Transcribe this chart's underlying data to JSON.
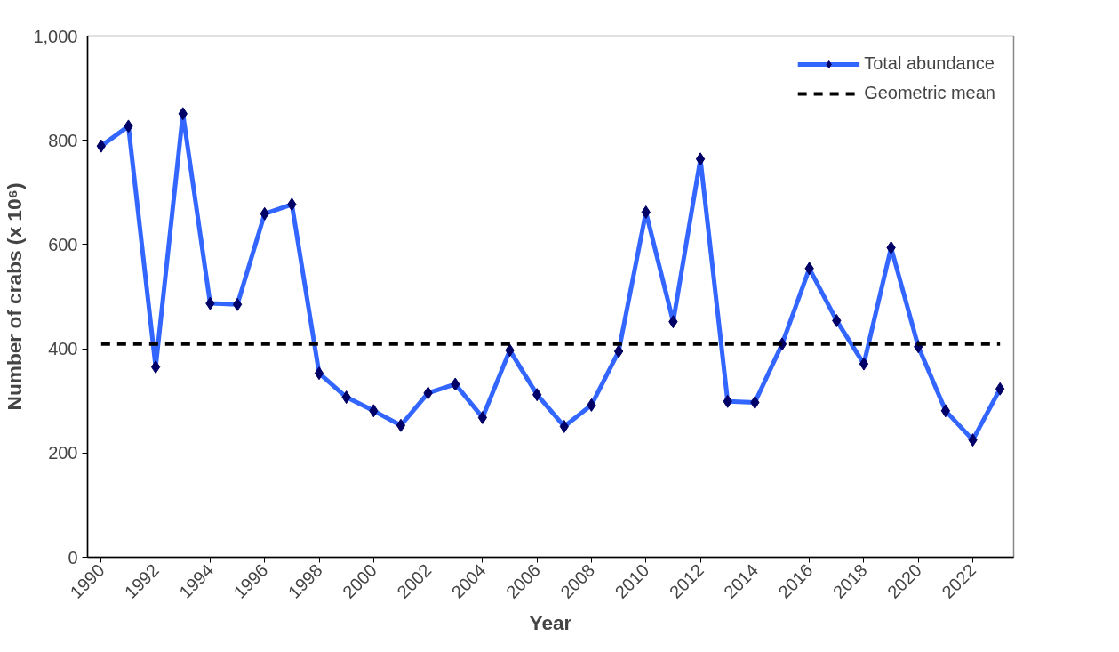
{
  "chart_data": {
    "type": "line",
    "xlabel": "Year",
    "ylabel": "Number of crabs (x 10⁶)",
    "x": [
      1990,
      1991,
      1992,
      1993,
      1994,
      1995,
      1996,
      1997,
      1998,
      1999,
      2000,
      2001,
      2002,
      2003,
      2004,
      2005,
      2006,
      2007,
      2008,
      2009,
      2010,
      2011,
      2012,
      2013,
      2014,
      2015,
      2016,
      2017,
      2018,
      2019,
      2020,
      2021,
      2022,
      2023
    ],
    "series": [
      {
        "name": "Total abundance",
        "color": "#3366ff",
        "values": [
          789,
          827,
          365,
          851,
          487,
          485,
          659,
          677,
          353,
          307,
          281,
          253,
          315,
          332,
          268,
          397,
          312,
          251,
          292,
          395,
          662,
          452,
          764,
          299,
          297,
          409,
          554,
          454,
          371,
          594,
          404,
          281,
          225,
          323
        ]
      }
    ],
    "marker": "diamond",
    "line_style": "solid",
    "ref_lines": [
      {
        "axis": "y",
        "value": 409,
        "label": "Geometric mean",
        "color": "#000000",
        "line_style": "dashed"
      }
    ],
    "xlim": [
      1989.5,
      2023.5
    ],
    "xticks": [
      1990,
      1992,
      1994,
      1996,
      1998,
      2000,
      2002,
      2004,
      2006,
      2008,
      2010,
      2012,
      2014,
      2016,
      2018,
      2020,
      2022
    ],
    "ylim": [
      0,
      1000
    ],
    "yticks": [
      0,
      200,
      400,
      600,
      800,
      {
        "value": 1000,
        "label": "1,000"
      }
    ],
    "grid": false,
    "legend": "top right"
  }
}
